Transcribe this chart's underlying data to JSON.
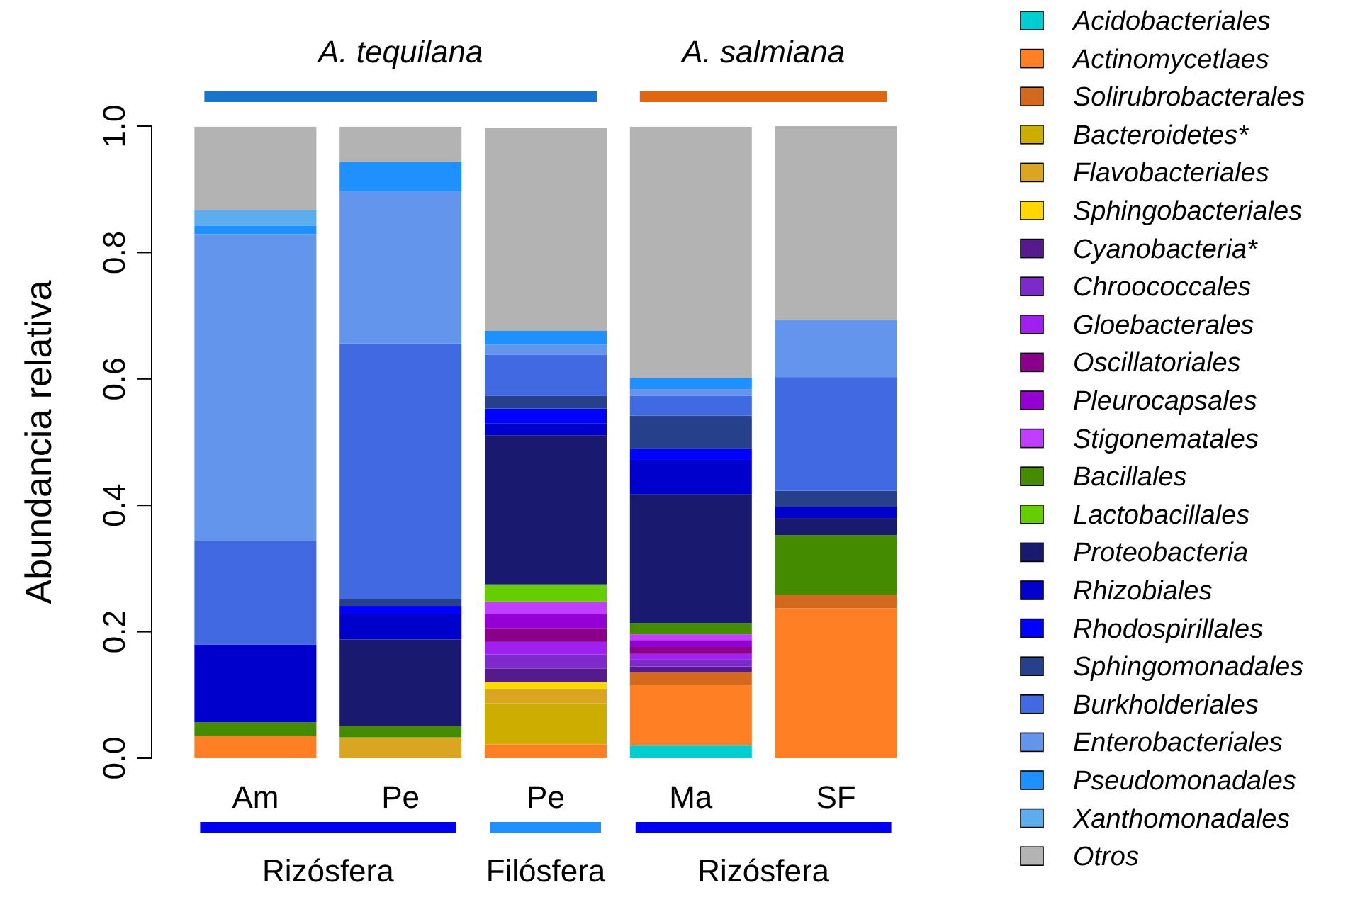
{
  "chart_data": {
    "type": "bar",
    "stacked": true,
    "ylabel": "Abundancia relativa",
    "categories": [
      "Am",
      "Pe",
      "Pe",
      "Ma",
      "SF"
    ],
    "ylim": [
      0,
      1
    ],
    "yticks": [
      {
        "value": 0,
        "label": "0.0"
      },
      {
        "value": 0.2,
        "label": "0.2"
      },
      {
        "value": 0.4,
        "label": "0.4"
      },
      {
        "value": 0.6,
        "label": "0.6"
      },
      {
        "value": 0.8,
        "label": "0.8"
      },
      {
        "value": 1,
        "label": "1.0"
      }
    ],
    "grid": false,
    "legend": "right",
    "annotations": [
      "A. tequilana",
      "A. salmiana",
      "Rizósfera",
      "Filósfera",
      "Rizósfera"
    ],
    "series": [
      {
        "name": "Acidobacteriales",
        "color": "#00ced1",
        "values": [
          0,
          0,
          0,
          0.02,
          0
        ]
      },
      {
        "name": "Actinomycetlaes",
        "color": "#ff7f24",
        "values": [
          0.035,
          0,
          0.022,
          0.096,
          0.237
        ]
      },
      {
        "name": "Solirubrobacterales",
        "color": "#d2691e",
        "values": [
          0,
          0,
          0,
          0.02,
          0.022
        ]
      },
      {
        "name": "Bacteroidetes*",
        "color": "#cdad00",
        "values": [
          0,
          0,
          0.065,
          0,
          0
        ]
      },
      {
        "name": "Flavobacteriales",
        "color": "#daa520",
        "values": [
          0,
          0.033,
          0.022,
          0,
          0
        ]
      },
      {
        "name": "Sphingobacteriales",
        "color": "#ffd700",
        "values": [
          0,
          0,
          0.011,
          0,
          0
        ]
      },
      {
        "name": "Cyanobacteria*",
        "color": "#551a8b",
        "values": [
          0,
          0,
          0.022,
          0.009,
          0
        ]
      },
      {
        "name": "Chroococcales",
        "color": "#7d2acd",
        "values": [
          0,
          0,
          0.022,
          0.011,
          0
        ]
      },
      {
        "name": "Gloebacterales",
        "color": "#a020f0",
        "values": [
          0,
          0,
          0.02,
          0.009,
          0
        ]
      },
      {
        "name": "Oscillatoriales",
        "color": "#8b008b",
        "values": [
          0,
          0,
          0.022,
          0.011,
          0
        ]
      },
      {
        "name": "Pleurocapsales",
        "color": "#9400d3",
        "values": [
          0,
          0,
          0.022,
          0.011,
          0
        ]
      },
      {
        "name": "Stigonematales",
        "color": "#bf3eff",
        "values": [
          0,
          0,
          0.02,
          0.009,
          0
        ]
      },
      {
        "name": "Bacillales",
        "color": "#458b00",
        "values": [
          0.022,
          0.018,
          0,
          0.018,
          0.094
        ]
      },
      {
        "name": "Lactobacillales",
        "color": "#66cd00",
        "values": [
          0,
          0,
          0.027,
          0,
          0
        ]
      },
      {
        "name": "Proteobacteria",
        "color": "#191970",
        "values": [
          0,
          0.137,
          0.236,
          0.204,
          0.027
        ]
      },
      {
        "name": "Rhizobiales",
        "color": "#0000cd",
        "values": [
          0.123,
          0.04,
          0.019,
          0.054,
          0.018
        ]
      },
      {
        "name": "Rhodospirillales",
        "color": "#0000ff",
        "values": [
          0,
          0.013,
          0.023,
          0.018,
          0
        ]
      },
      {
        "name": "Sphingomonadales",
        "color": "#27408b",
        "values": [
          0,
          0.011,
          0.02,
          0.052,
          0.025
        ]
      },
      {
        "name": "Burkholderiales",
        "color": "#4169e1",
        "values": [
          0.164,
          0.404,
          0.065,
          0.031,
          0.18
        ]
      },
      {
        "name": "Enterobacteriales",
        "color": "#6495ed",
        "values": [
          0.485,
          0.24,
          0.016,
          0.011,
          0.09
        ]
      },
      {
        "name": "Pseudomonadales",
        "color": "#1e90ff",
        "values": [
          0.013,
          0.047,
          0.022,
          0.018,
          0
        ]
      },
      {
        "name": "Xanthomonadales",
        "color": "#5cacee",
        "values": [
          0.025,
          0,
          0,
          0,
          0
        ]
      },
      {
        "name": "Otros",
        "color": "#b3b3b3",
        "values": [
          0.132,
          0.056,
          0.321,
          0.397,
          0.307
        ]
      }
    ]
  }
}
